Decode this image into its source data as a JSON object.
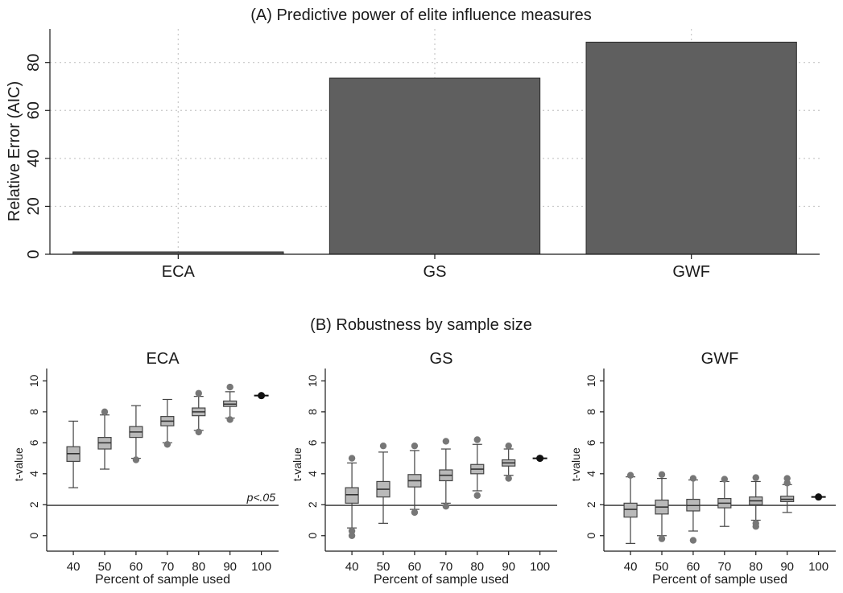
{
  "chart_data": [
    {
      "type": "bar",
      "title": "(A) Predictive power of elite influence measures",
      "xlabel": "",
      "ylabel": "Relative Error (AIC)",
      "categories": [
        "ECA",
        "GS",
        "GWF"
      ],
      "values": [
        1,
        73.5,
        88.5
      ],
      "ylim": [
        0,
        94
      ],
      "yticks": [
        0,
        20,
        40,
        60,
        80
      ],
      "grid": true,
      "bar_color": "#5f5f5f"
    },
    {
      "type": "box",
      "section_title": "(B) Robustness by sample size",
      "panels": [
        {
          "title": "ECA",
          "xlabel": "Percent of sample used",
          "ylabel": "t-value",
          "ylim": [
            -1,
            10.8
          ],
          "yticks": [
            0,
            2,
            4,
            6,
            8,
            10
          ],
          "reference_line": 1.96,
          "annotation": "p<.05",
          "categories": [
            40,
            50,
            60,
            70,
            80,
            90,
            100
          ],
          "boxes": [
            {
              "x": 40,
              "lw": 3.1,
              "q1": 4.8,
              "med": 5.3,
              "q3": 5.75,
              "uw": 7.4,
              "outliers": []
            },
            {
              "x": 50,
              "lw": 4.3,
              "q1": 5.6,
              "med": 6.0,
              "q3": 6.35,
              "uw": 7.8,
              "outliers": [
                8.0
              ]
            },
            {
              "x": 60,
              "lw": 5.0,
              "q1": 6.35,
              "med": 6.7,
              "q3": 7.05,
              "uw": 8.4,
              "outliers": [
                4.9
              ]
            },
            {
              "x": 70,
              "lw": 6.0,
              "q1": 7.1,
              "med": 7.4,
              "q3": 7.7,
              "uw": 8.8,
              "outliers": [
                5.9
              ]
            },
            {
              "x": 80,
              "lw": 6.8,
              "q1": 7.75,
              "med": 8.0,
              "q3": 8.25,
              "uw": 9.0,
              "outliers": [
                6.7,
                9.2
              ]
            },
            {
              "x": 90,
              "lw": 7.6,
              "q1": 8.35,
              "med": 8.5,
              "q3": 8.7,
              "uw": 9.3,
              "outliers": [
                7.5,
                9.6
              ]
            },
            {
              "x": 100,
              "point": 9.05
            }
          ]
        },
        {
          "title": "GS",
          "xlabel": "Percent of sample used",
          "ylabel": "t-value",
          "ylim": [
            -1,
            10.8
          ],
          "yticks": [
            0,
            2,
            4,
            6,
            8,
            10
          ],
          "reference_line": 1.96,
          "annotation": "",
          "categories": [
            40,
            50,
            60,
            70,
            80,
            90,
            100
          ],
          "boxes": [
            {
              "x": 40,
              "lw": 0.5,
              "q1": 2.1,
              "med": 2.65,
              "q3": 3.1,
              "uw": 4.7,
              "outliers": [
                5.0,
                0.3,
                0.0
              ]
            },
            {
              "x": 50,
              "lw": 0.8,
              "q1": 2.5,
              "med": 3.0,
              "q3": 3.5,
              "uw": 5.4,
              "outliers": [
                5.8
              ]
            },
            {
              "x": 60,
              "lw": 1.7,
              "q1": 3.15,
              "med": 3.55,
              "q3": 3.95,
              "uw": 5.5,
              "outliers": [
                5.8,
                1.5
              ]
            },
            {
              "x": 70,
              "lw": 2.1,
              "q1": 3.55,
              "med": 3.9,
              "q3": 4.25,
              "uw": 5.6,
              "outliers": [
                6.1,
                1.9
              ]
            },
            {
              "x": 80,
              "lw": 2.9,
              "q1": 4.0,
              "med": 4.3,
              "q3": 4.6,
              "uw": 5.9,
              "outliers": [
                6.2,
                2.6
              ]
            },
            {
              "x": 90,
              "lw": 3.9,
              "q1": 4.5,
              "med": 4.7,
              "q3": 4.9,
              "uw": 5.6,
              "outliers": [
                5.8,
                3.7
              ]
            },
            {
              "x": 100,
              "point": 5.0
            }
          ]
        },
        {
          "title": "GWF",
          "xlabel": "Percent of sample used",
          "ylabel": "t-value",
          "ylim": [
            -1,
            10.8
          ],
          "yticks": [
            0,
            2,
            4,
            6,
            8,
            10
          ],
          "reference_line": 1.96,
          "annotation": "",
          "categories": [
            40,
            50,
            60,
            70,
            80,
            90,
            100
          ],
          "boxes": [
            {
              "x": 40,
              "lw": -0.5,
              "q1": 1.2,
              "med": 1.7,
              "q3": 2.1,
              "uw": 3.8,
              "outliers": [
                3.9
              ]
            },
            {
              "x": 50,
              "lw": 0.0,
              "q1": 1.4,
              "med": 1.85,
              "q3": 2.3,
              "uw": 3.7,
              "outliers": [
                3.95,
                -0.2
              ]
            },
            {
              "x": 60,
              "lw": 0.3,
              "q1": 1.6,
              "med": 1.95,
              "q3": 2.35,
              "uw": 3.6,
              "outliers": [
                3.7,
                -0.3
              ]
            },
            {
              "x": 70,
              "lw": 0.6,
              "q1": 1.8,
              "med": 2.1,
              "q3": 2.4,
              "uw": 3.5,
              "outliers": [
                3.65
              ]
            },
            {
              "x": 80,
              "lw": 1.0,
              "q1": 2.0,
              "med": 2.25,
              "q3": 2.5,
              "uw": 3.5,
              "outliers": [
                3.75,
                0.8,
                0.6
              ]
            },
            {
              "x": 90,
              "lw": 1.5,
              "q1": 2.2,
              "med": 2.35,
              "q3": 2.55,
              "uw": 3.3,
              "outliers": [
                3.7,
                3.4
              ]
            },
            {
              "x": 100,
              "point": 2.5
            }
          ]
        }
      ]
    }
  ]
}
